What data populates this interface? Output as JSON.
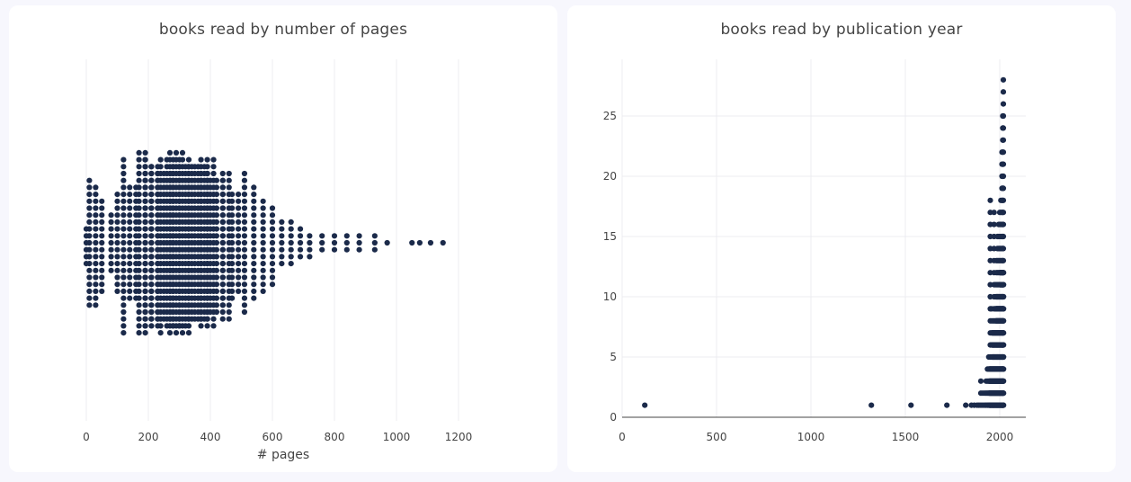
{
  "colors": {
    "marker": "#1b2a4a",
    "grid": "#ececf1",
    "zeroline": "#444444",
    "text": "#444444",
    "background": "#f7f7fd",
    "panel": "#ffffff"
  },
  "chart_data": [
    {
      "type": "scatter",
      "style": "beeswarm",
      "title": "books read by number of pages",
      "xlabel": "# pages",
      "ylabel": "",
      "xlim": [
        -40,
        1340
      ],
      "xticks": [
        "0",
        "200",
        "400",
        "600",
        "800",
        "1000",
        "1200"
      ],
      "grid": true,
      "legend": "none",
      "note": "approximate estimate of points read from the dot pattern; y is the stacking offset of each dot",
      "columns": [
        {
          "x": 0,
          "counts": [
            0,
            0,
            0,
            0,
            0,
            0,
            3,
            2,
            1,
            0,
            0,
            0,
            0,
            0,
            0,
            0
          ]
        },
        {
          "x": 20,
          "counts": [
            1,
            2,
            3,
            4,
            4,
            4,
            5,
            4,
            3,
            3,
            3,
            1,
            0,
            0,
            0,
            0
          ]
        },
        {
          "x": 50,
          "counts": [
            0,
            0,
            0,
            0,
            0,
            2,
            4,
            4,
            3,
            1,
            0,
            0,
            0,
            0,
            0,
            0
          ]
        },
        {
          "x": 80,
          "counts": [
            0,
            0,
            0,
            0,
            0,
            0,
            2,
            3,
            3,
            1,
            0,
            0,
            0,
            0,
            0,
            0
          ]
        },
        {
          "x": 100,
          "counts": [
            0,
            0,
            0,
            0,
            0,
            2,
            4,
            4,
            3,
            2,
            0,
            0,
            0,
            0,
            0,
            0
          ]
        },
        {
          "x": 120,
          "counts": [
            0,
            0,
            0,
            2,
            3,
            4,
            4,
            4,
            4,
            3,
            2,
            0,
            0,
            0,
            0,
            0
          ]
        },
        {
          "x": 150,
          "counts": [
            0,
            0,
            1,
            2,
            3,
            5,
            5,
            5,
            5,
            4,
            3,
            1,
            0,
            0,
            0,
            0
          ]
        },
        {
          "x": 180,
          "counts": [
            1,
            2,
            3,
            4,
            5,
            6,
            6,
            6,
            6,
            5,
            4,
            3,
            2,
            1,
            0,
            0
          ]
        },
        {
          "x": 210,
          "counts": [
            2,
            3,
            4,
            5,
            6,
            7,
            7,
            7,
            7,
            6,
            5,
            4,
            4,
            3,
            2,
            1
          ]
        },
        {
          "x": 240,
          "counts": [
            3,
            4,
            5,
            6,
            7,
            8,
            8,
            8,
            8,
            7,
            6,
            5,
            5,
            4,
            3,
            2
          ]
        },
        {
          "x": 270,
          "counts": [
            4,
            5,
            6,
            7,
            8,
            9,
            9,
            9,
            9,
            8,
            7,
            6,
            5,
            4,
            3,
            2
          ]
        },
        {
          "x": 300,
          "counts": [
            4,
            5,
            6,
            7,
            8,
            9,
            10,
            10,
            9,
            8,
            7,
            6,
            6,
            5,
            4,
            3
          ]
        },
        {
          "x": 330,
          "counts": [
            6,
            7,
            8,
            9,
            10,
            12,
            14,
            14,
            12,
            10,
            9,
            8,
            7,
            6,
            5,
            4
          ]
        },
        {
          "x": 360,
          "counts": [
            3,
            4,
            5,
            6,
            7,
            8,
            9,
            9,
            8,
            7,
            6,
            5,
            4,
            4,
            3,
            2
          ]
        },
        {
          "x": 390,
          "counts": [
            2,
            3,
            4,
            5,
            6,
            7,
            8,
            8,
            7,
            6,
            5,
            4,
            4,
            3,
            2,
            1
          ]
        },
        {
          "x": 420,
          "counts": [
            1,
            2,
            3,
            4,
            5,
            6,
            7,
            7,
            6,
            5,
            4,
            3,
            3,
            2,
            1,
            0
          ]
        },
        {
          "x": 450,
          "counts": [
            0,
            1,
            2,
            3,
            4,
            5,
            6,
            6,
            5,
            4,
            3,
            2,
            2,
            1,
            0,
            0
          ]
        },
        {
          "x": 480,
          "counts": [
            0,
            0,
            1,
            2,
            3,
            4,
            5,
            5,
            4,
            3,
            2,
            1,
            1,
            0,
            0,
            0
          ]
        },
        {
          "x": 510,
          "counts": [
            0,
            0,
            0,
            1,
            2,
            3,
            4,
            4,
            3,
            2,
            1,
            1,
            0,
            0,
            0,
            0
          ]
        },
        {
          "x": 540,
          "counts": [
            0,
            0,
            0,
            0,
            1,
            2,
            4,
            4,
            3,
            2,
            1,
            0,
            0,
            0,
            0,
            0
          ]
        },
        {
          "x": 570,
          "counts": [
            0,
            0,
            0,
            0,
            1,
            2,
            3,
            3,
            2,
            2,
            1,
            0,
            0,
            0,
            0,
            0
          ]
        },
        {
          "x": 600,
          "counts": [
            0,
            0,
            0,
            0,
            1,
            1,
            3,
            3,
            2,
            1,
            1,
            0,
            0,
            0,
            0,
            0
          ]
        },
        {
          "x": 630,
          "counts": [
            0,
            0,
            0,
            0,
            0,
            1,
            2,
            2,
            1,
            1,
            0,
            0,
            0,
            0,
            0,
            0
          ]
        },
        {
          "x": 660,
          "counts": [
            0,
            0,
            0,
            0,
            0,
            1,
            2,
            2,
            1,
            1,
            0,
            0,
            0,
            0,
            0,
            0
          ]
        },
        {
          "x": 690,
          "counts": [
            0,
            0,
            0,
            0,
            0,
            0,
            2,
            2,
            1,
            0,
            0,
            0,
            0,
            0,
            0,
            0
          ]
        },
        {
          "x": 720,
          "counts": [
            0,
            0,
            0,
            0,
            0,
            0,
            2,
            1,
            1,
            0,
            0,
            0,
            0,
            0,
            0,
            0
          ]
        },
        {
          "x": 760,
          "counts": [
            0,
            0,
            0,
            0,
            0,
            0,
            2,
            1,
            0,
            0,
            0,
            0,
            0,
            0,
            0,
            0
          ]
        },
        {
          "x": 800,
          "counts": [
            0,
            0,
            0,
            0,
            0,
            0,
            2,
            1,
            0,
            0,
            0,
            0,
            0,
            0,
            0,
            0
          ]
        },
        {
          "x": 840,
          "counts": [
            0,
            0,
            0,
            0,
            0,
            0,
            1,
            1,
            1,
            0,
            0,
            0,
            0,
            0,
            0,
            0
          ]
        },
        {
          "x": 880,
          "counts": [
            0,
            0,
            0,
            0,
            0,
            0,
            1,
            1,
            1,
            0,
            0,
            0,
            0,
            0,
            0,
            0
          ]
        },
        {
          "x": 930,
          "counts": [
            0,
            0,
            0,
            0,
            0,
            0,
            1,
            1,
            1,
            0,
            0,
            0,
            0,
            0,
            0,
            0
          ]
        },
        {
          "x": 970,
          "counts": [
            0,
            0,
            0,
            0,
            0,
            0,
            1,
            0,
            0,
            0,
            0,
            0,
            0,
            0,
            0,
            0
          ]
        },
        {
          "x": 1050,
          "counts": [
            0,
            0,
            0,
            0,
            0,
            0,
            1,
            0,
            0,
            0,
            0,
            0,
            0,
            0,
            0,
            0
          ]
        },
        {
          "x": 1075,
          "counts": [
            0,
            0,
            0,
            0,
            0,
            0,
            1,
            0,
            0,
            0,
            0,
            0,
            0,
            0,
            0,
            0
          ]
        },
        {
          "x": 1110,
          "counts": [
            0,
            0,
            0,
            0,
            0,
            0,
            1,
            0,
            0,
            0,
            0,
            0,
            0,
            0,
            0,
            0
          ]
        },
        {
          "x": 1150,
          "counts": [
            0,
            0,
            0,
            0,
            0,
            0,
            1,
            0,
            0,
            0,
            0,
            0,
            0,
            0,
            0,
            0
          ]
        }
      ]
    },
    {
      "type": "scatter",
      "title": "books read by publication year",
      "xlabel": "",
      "ylabel": "",
      "xlim": [
        0,
        2150
      ],
      "ylim": [
        0,
        29
      ],
      "xticks": [
        "0",
        "500",
        "1000",
        "1500",
        "2000"
      ],
      "yticks": [
        "0",
        "5",
        "10",
        "15",
        "20",
        "25"
      ],
      "grid": true,
      "legend": "none",
      "note": "y = number of books with that publication year; approximate",
      "points_single": [
        {
          "x": 120,
          "y": 1
        },
        {
          "x": 1320,
          "y": 1
        },
        {
          "x": 1530,
          "y": 1
        },
        {
          "x": 1720,
          "y": 1
        },
        {
          "x": 1820,
          "y": 1
        },
        {
          "x": 1850,
          "y": 1
        },
        {
          "x": 1865,
          "y": 1
        },
        {
          "x": 1880,
          "y": 1
        },
        {
          "x": 1890,
          "y": 1
        },
        {
          "x": 1900,
          "y": 3
        },
        {
          "x": 1910,
          "y": 2
        }
      ],
      "year_peaks": [
        {
          "x": 1920,
          "y": 2
        },
        {
          "x": 1928,
          "y": 3
        },
        {
          "x": 1935,
          "y": 4
        },
        {
          "x": 1942,
          "y": 5
        },
        {
          "x": 1950,
          "y": 18
        },
        {
          "x": 1957,
          "y": 9
        },
        {
          "x": 1964,
          "y": 8
        },
        {
          "x": 1970,
          "y": 17
        },
        {
          "x": 1976,
          "y": 11
        },
        {
          "x": 1982,
          "y": 13
        },
        {
          "x": 1988,
          "y": 15
        },
        {
          "x": 1994,
          "y": 16
        },
        {
          "x": 2000,
          "y": 17
        },
        {
          "x": 2006,
          "y": 18
        },
        {
          "x": 2012,
          "y": 22
        },
        {
          "x": 2016,
          "y": 25
        },
        {
          "x": 2019,
          "y": 28
        }
      ]
    }
  ]
}
